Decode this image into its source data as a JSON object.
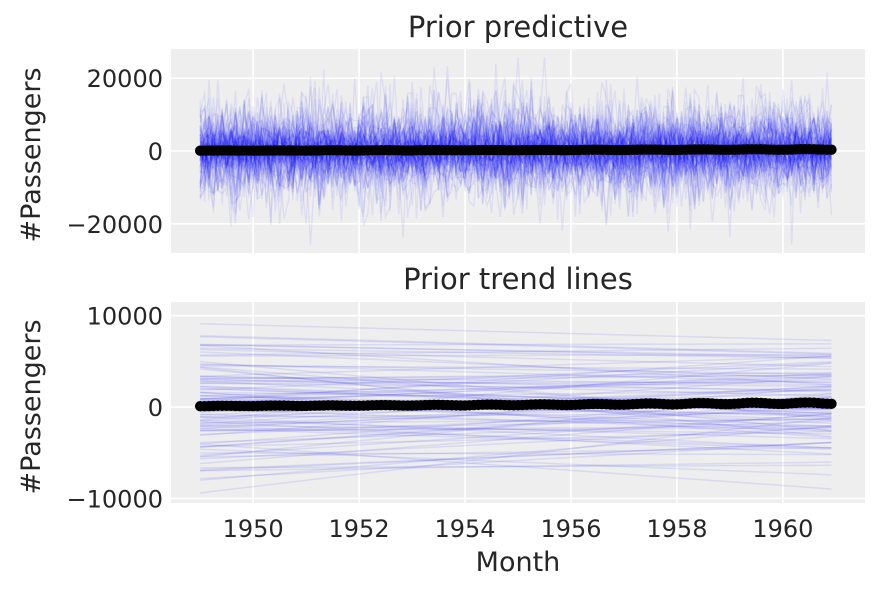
{
  "colors": {
    "panel_bg": "#eeeeee",
    "grid": "#ffffff",
    "sample_line": "#0000ff",
    "observed": "#000000"
  },
  "x_axis": {
    "label": "Month",
    "ticks": [
      1950,
      1952,
      1954,
      1956,
      1958,
      1960
    ],
    "range": [
      1948.45,
      1961.55
    ],
    "data_range": [
      1949.0,
      1960.917
    ]
  },
  "chart_data": [
    {
      "type": "line",
      "title": "Prior predictive",
      "ylabel": "#Passengers",
      "xlabel": "",
      "ylim": [
        -28000,
        28000
      ],
      "yticks": [
        20000,
        0,
        -20000
      ],
      "ytick_labels": [
        "20000",
        "0",
        "−20000"
      ],
      "series": [
        {
          "kind": "prior predictive samples",
          "count": 100,
          "style": "transparent blue lines",
          "approx_range": [
            -25000,
            26000
          ]
        },
        {
          "kind": "observed",
          "style": "black dots",
          "x": [
            1949.0,
            1951.0,
            1953.0,
            1955.0,
            1957.0,
            1959.0,
            1960.917
          ],
          "values": [
            112,
            150,
            196,
            242,
            315,
            396,
            432
          ]
        }
      ],
      "grid": true
    },
    {
      "type": "line",
      "title": "Prior trend lines",
      "ylabel": "#Passengers",
      "xlabel": "Month",
      "ylim": [
        -10500,
        11500
      ],
      "yticks": [
        10000,
        0,
        -10000
      ],
      "ytick_labels": [
        "10000",
        "0",
        "−10000"
      ],
      "series": [
        {
          "kind": "prior trend lines",
          "count": 100,
          "style": "transparent blue straight lines",
          "approx_range": [
            -9500,
            10500
          ]
        },
        {
          "kind": "observed",
          "style": "black dots",
          "x": [
            1949.0,
            1951.0,
            1953.0,
            1955.0,
            1957.0,
            1959.0,
            1960.917
          ],
          "values": [
            112,
            150,
            196,
            242,
            315,
            396,
            432
          ]
        }
      ],
      "grid": true
    }
  ]
}
